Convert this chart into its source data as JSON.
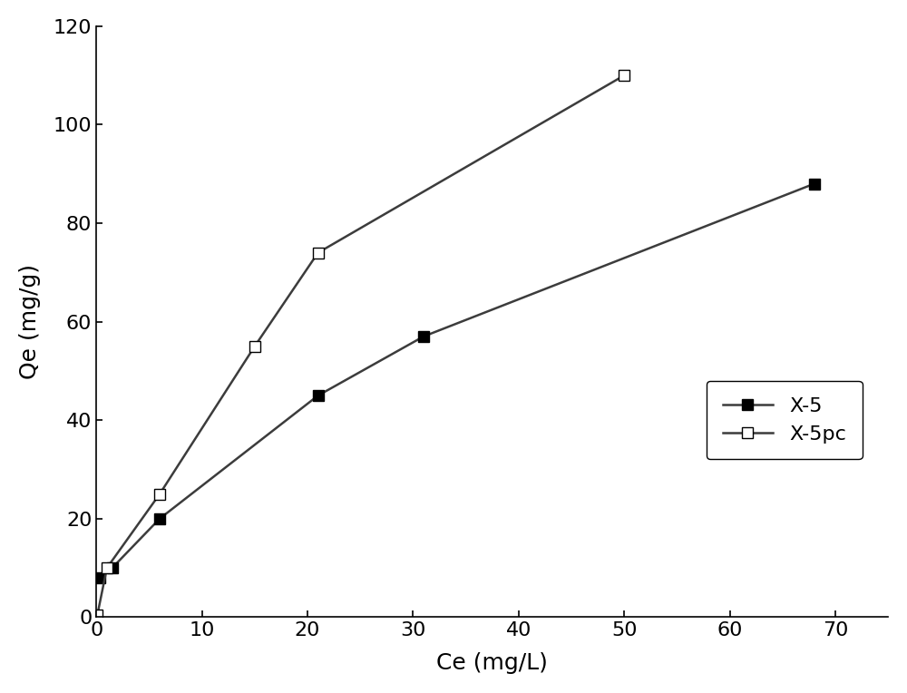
{
  "x5_x": [
    0.3,
    1.5,
    6,
    21,
    31,
    68
  ],
  "x5_y": [
    8,
    10,
    20,
    45,
    57,
    88
  ],
  "x5pc_x": [
    0.1,
    1.0,
    6,
    15,
    21,
    50
  ],
  "x5pc_y": [
    0.5,
    10,
    25,
    55,
    74,
    110
  ],
  "x5_label": "X-5",
  "x5pc_label": "X-5pc",
  "xlabel": "Ce (mg/L)",
  "ylabel": "Qe (mg/g)",
  "xlim": [
    0,
    75
  ],
  "ylim": [
    0,
    120
  ],
  "xticks": [
    0,
    10,
    20,
    30,
    40,
    50,
    60,
    70
  ],
  "yticks": [
    0,
    20,
    40,
    60,
    80,
    100,
    120
  ],
  "line_color": "#3c3c3c",
  "bg_color": "#ffffff",
  "marker_size": 9,
  "linewidth": 1.8,
  "font_size_label": 18,
  "font_size_tick": 16,
  "font_size_legend": 16
}
